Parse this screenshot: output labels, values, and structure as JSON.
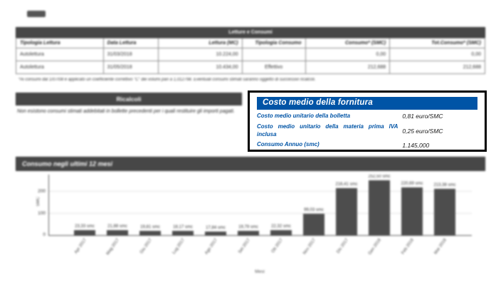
{
  "table": {
    "title": "Letture e Consumi",
    "columns": [
      "Tipologia Lettura",
      "Data Lettura",
      "Lettura (MC)",
      "Tipologia Consumo",
      "Consumo* (SMC)",
      "Tot.Consumo* (SMC)"
    ],
    "rows": [
      [
        "Autolettura",
        "31/03/2018",
        "10.224,00",
        "",
        "0,00",
        "0,00"
      ],
      [
        "Autolettura",
        "31/05/2018",
        "10.434,00",
        "Effettivo",
        "212,688",
        "212,688"
      ]
    ],
    "footnote": "*Ai consumi dal 1/07/08 è applicato un coefficiente correttivo \"C\" dei volumi pari a 1,012798. Eventuali consumi stimati saranno oggetto di successivi ricalcoli."
  },
  "ricalcoli": {
    "title": "Ricalcoli",
    "text": "Non esistono consumi stimati addebitati in bollette precedenti per i quali restituire gli importi pagati."
  },
  "costo_box": {
    "title": "Costo medio della fornitura",
    "accent_color": "#0054a6",
    "rows": [
      {
        "label": "Costo medio unitario della bolletta",
        "value": "0,81 euro/SMC"
      },
      {
        "label": "Costo medio unitario della materia prima IVA inclusa",
        "value": "0,25 euro/SMC"
      },
      {
        "label": "Consumo Annuo (smc)",
        "value": "1.145,000"
      }
    ]
  },
  "chart_section": {
    "title": "Consumo negli ultimi 12 mesi"
  },
  "chart_data": {
    "type": "bar",
    "title": "Consumo negli ultimi 12 mesi",
    "categories": [
      "Apr 2017",
      "Mag 2017",
      "Giu 2017",
      "Lug 2017",
      "Ago 2017",
      "Set 2017",
      "Ott 2017",
      "Nov 2017",
      "Dic 2017",
      "Gen 2018",
      "Feb 2018",
      "Mar 2018"
    ],
    "values": [
      23.33,
      21.88,
      19.81,
      18.17,
      17.84,
      19.79,
      22.32,
      99.03,
      216.41,
      252.5,
      220.69,
      213.38
    ],
    "bar_labels": [
      "23,33 smc",
      "21,88 smc",
      "19,81 smc",
      "18,17 smc",
      "17,84 smc",
      "19,79 smc",
      "22,32 smc",
      "99,03 smc",
      "216,41 smc",
      "252,50 smc",
      "220,69 smc",
      "213,38 smc"
    ],
    "xlabel": "Mesi",
    "ylabel": "SMC",
    "yticks": [
      0,
      100,
      200
    ],
    "ylim": [
      0,
      280
    ],
    "grid": true,
    "bar_color": "#4d4d4d"
  }
}
